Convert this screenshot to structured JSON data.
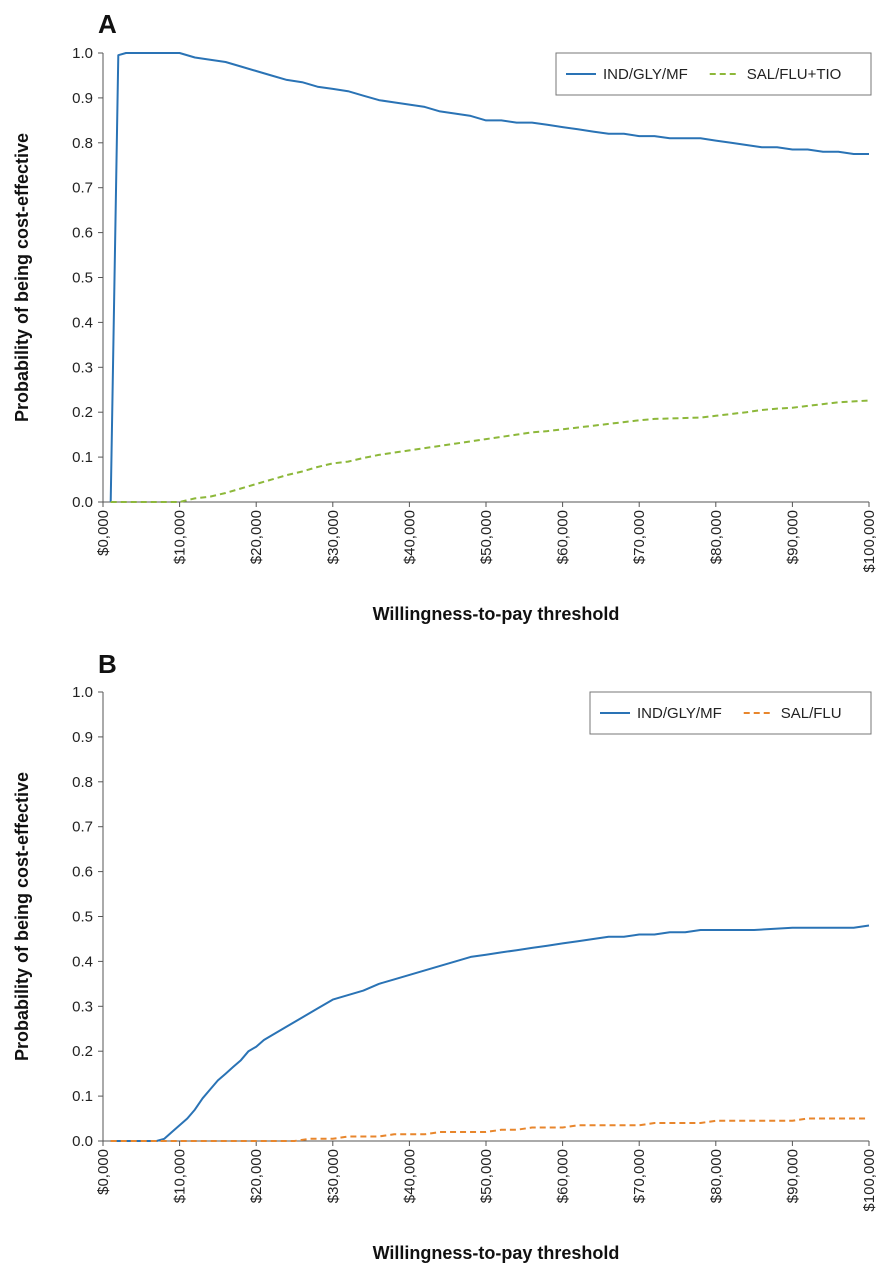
{
  "chart_data": [
    {
      "panel": "A",
      "type": "line",
      "xlabel": "Willingness-to-pay threshold",
      "ylabel": "Probability of being cost-effective",
      "xlim": [
        0,
        100000
      ],
      "ylim": [
        0,
        1.0
      ],
      "xticks": [
        "$0,000",
        "$10,000",
        "$20,000",
        "$30,000",
        "$40,000",
        "$50,000",
        "$60,000",
        "$70,000",
        "$80,000",
        "$90,000",
        "$100,000"
      ],
      "yticks": [
        "0.0",
        "0.1",
        "0.2",
        "0.3",
        "0.4",
        "0.5",
        "0.6",
        "0.7",
        "0.8",
        "0.9",
        "1.0"
      ],
      "grid": false,
      "legend_position": "top-right",
      "series": [
        {
          "name": "IND/GLY/MF",
          "color": "#2a73b5",
          "style": "solid",
          "x": [
            1000,
            2000,
            3000,
            5000,
            10000,
            12000,
            14000,
            16000,
            18000,
            20000,
            22000,
            24000,
            26000,
            28000,
            30000,
            32000,
            34000,
            36000,
            38000,
            40000,
            42000,
            44000,
            46000,
            48000,
            50000,
            52000,
            54000,
            56000,
            58000,
            60000,
            62000,
            64000,
            66000,
            68000,
            70000,
            72000,
            74000,
            76000,
            78000,
            80000,
            82000,
            84000,
            86000,
            88000,
            90000,
            92000,
            94000,
            96000,
            98000,
            100000
          ],
          "y": [
            0.0,
            0.995,
            1.0,
            1.0,
            1.0,
            0.99,
            0.985,
            0.98,
            0.97,
            0.96,
            0.95,
            0.94,
            0.935,
            0.925,
            0.92,
            0.915,
            0.905,
            0.895,
            0.89,
            0.885,
            0.88,
            0.87,
            0.865,
            0.86,
            0.85,
            0.85,
            0.845,
            0.845,
            0.84,
            0.835,
            0.83,
            0.825,
            0.82,
            0.82,
            0.815,
            0.815,
            0.81,
            0.81,
            0.81,
            0.805,
            0.8,
            0.795,
            0.79,
            0.79,
            0.785,
            0.785,
            0.78,
            0.78,
            0.775,
            0.775
          ]
        },
        {
          "name": "SAL/FLU+TIO",
          "color": "#8db83a",
          "style": "dashed",
          "x": [
            1000,
            5000,
            10000,
            12000,
            14000,
            16000,
            18000,
            20000,
            22000,
            24000,
            26000,
            28000,
            30000,
            32000,
            34000,
            36000,
            38000,
            40000,
            42000,
            44000,
            46000,
            48000,
            50000,
            52000,
            54000,
            56000,
            58000,
            60000,
            62000,
            64000,
            66000,
            68000,
            70000,
            72000,
            74000,
            76000,
            78000,
            80000,
            82000,
            84000,
            86000,
            88000,
            90000,
            92000,
            94000,
            96000,
            98000,
            100000
          ],
          "y": [
            0.0,
            0.0,
            0.0,
            0.008,
            0.012,
            0.02,
            0.03,
            0.04,
            0.05,
            0.06,
            0.068,
            0.078,
            0.086,
            0.09,
            0.098,
            0.105,
            0.11,
            0.115,
            0.12,
            0.125,
            0.13,
            0.135,
            0.14,
            0.145,
            0.15,
            0.155,
            0.158,
            0.162,
            0.166,
            0.17,
            0.174,
            0.178,
            0.182,
            0.185,
            0.186,
            0.187,
            0.188,
            0.192,
            0.196,
            0.2,
            0.205,
            0.208,
            0.21,
            0.214,
            0.218,
            0.222,
            0.224,
            0.226
          ]
        }
      ]
    },
    {
      "panel": "B",
      "type": "line",
      "xlabel": "Willingness-to-pay threshold",
      "ylabel": "Probability of being cost-effective",
      "xlim": [
        0,
        100000
      ],
      "ylim": [
        0,
        1.0
      ],
      "xticks": [
        "$0,000",
        "$10,000",
        "$20,000",
        "$30,000",
        "$40,000",
        "$50,000",
        "$60,000",
        "$70,000",
        "$80,000",
        "$90,000",
        "$100,000"
      ],
      "yticks": [
        "0.0",
        "0.1",
        "0.2",
        "0.3",
        "0.4",
        "0.5",
        "0.6",
        "0.7",
        "0.8",
        "0.9",
        "1.0"
      ],
      "grid": false,
      "legend_position": "top-right",
      "series": [
        {
          "name": "IND/GLY/MF",
          "color": "#2a73b5",
          "style": "solid",
          "x": [
            1000,
            7000,
            8000,
            9000,
            10000,
            11000,
            12000,
            13000,
            14000,
            15000,
            16000,
            17000,
            18000,
            19000,
            20000,
            21000,
            22000,
            24000,
            26000,
            28000,
            30000,
            32000,
            34000,
            36000,
            38000,
            40000,
            42000,
            44000,
            46000,
            48000,
            50000,
            52000,
            54000,
            56000,
            58000,
            60000,
            62000,
            64000,
            66000,
            68000,
            70000,
            72000,
            74000,
            76000,
            78000,
            80000,
            85000,
            90000,
            92000,
            95000,
            98000,
            100000
          ],
          "y": [
            0.0,
            0.0,
            0.005,
            0.02,
            0.035,
            0.05,
            0.07,
            0.095,
            0.115,
            0.135,
            0.15,
            0.165,
            0.18,
            0.2,
            0.21,
            0.225,
            0.235,
            0.255,
            0.275,
            0.295,
            0.315,
            0.325,
            0.335,
            0.35,
            0.36,
            0.37,
            0.38,
            0.39,
            0.4,
            0.41,
            0.415,
            0.42,
            0.425,
            0.43,
            0.435,
            0.44,
            0.445,
            0.45,
            0.455,
            0.455,
            0.46,
            0.46,
            0.465,
            0.465,
            0.47,
            0.47,
            0.47,
            0.475,
            0.475,
            0.475,
            0.475,
            0.48
          ]
        },
        {
          "name": "SAL/FLU",
          "color": "#e8862c",
          "style": "dashed",
          "x": [
            1000,
            25000,
            27000,
            30000,
            32000,
            36000,
            38000,
            42000,
            44000,
            48000,
            50000,
            52000,
            54000,
            56000,
            58000,
            60000,
            62000,
            64000,
            66000,
            68000,
            70000,
            72000,
            74000,
            76000,
            78000,
            80000,
            85000,
            90000,
            92000,
            95000,
            100000
          ],
          "y": [
            0.0,
            0.0,
            0.005,
            0.005,
            0.01,
            0.01,
            0.015,
            0.015,
            0.02,
            0.02,
            0.02,
            0.025,
            0.025,
            0.03,
            0.03,
            0.03,
            0.035,
            0.035,
            0.035,
            0.035,
            0.035,
            0.04,
            0.04,
            0.04,
            0.04,
            0.045,
            0.045,
            0.045,
            0.05,
            0.05,
            0.05
          ]
        }
      ]
    }
  ]
}
